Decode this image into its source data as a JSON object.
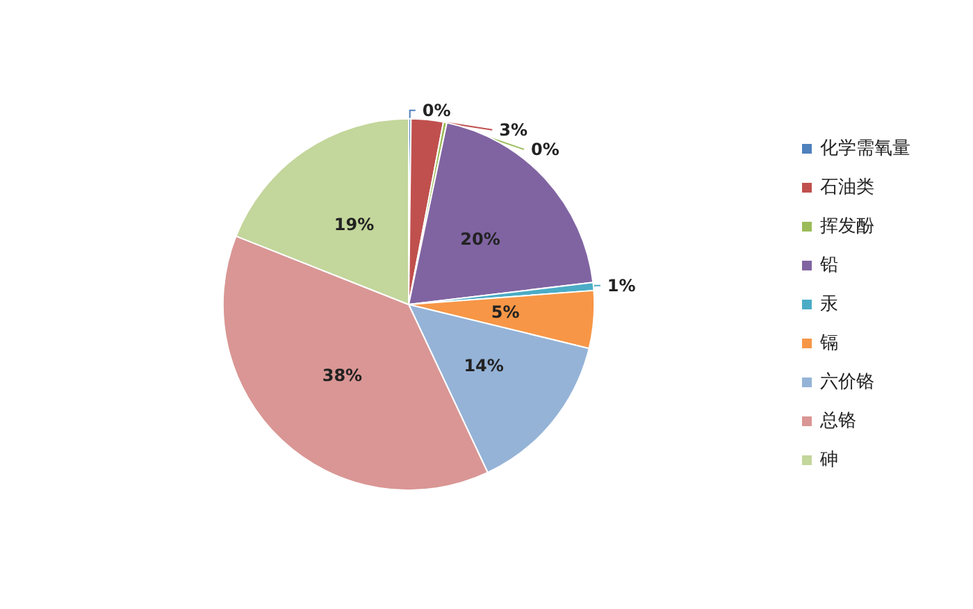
{
  "chart_data": {
    "type": "pie",
    "categories": [
      "化学需氧量",
      "石油类",
      "挥发酚",
      "铅",
      "汞",
      "镉",
      "六价铬",
      "总铬",
      "砷"
    ],
    "values": [
      0.2,
      2.8,
      0.3,
      19.8,
      0.7,
      5,
      14.2,
      38,
      19
    ],
    "value_labels": [
      "0%",
      "3%",
      "0%",
      "20%",
      "1%",
      "5%",
      "14%",
      "38%",
      "19%"
    ],
    "colors": [
      "#4f81bd",
      "#c0504d",
      "#9bbb59",
      "#8064a2",
      "#4bacc6",
      "#f79646",
      "#95b3d7",
      "#d99694",
      "#c3d69b"
    ],
    "legend": "right"
  }
}
